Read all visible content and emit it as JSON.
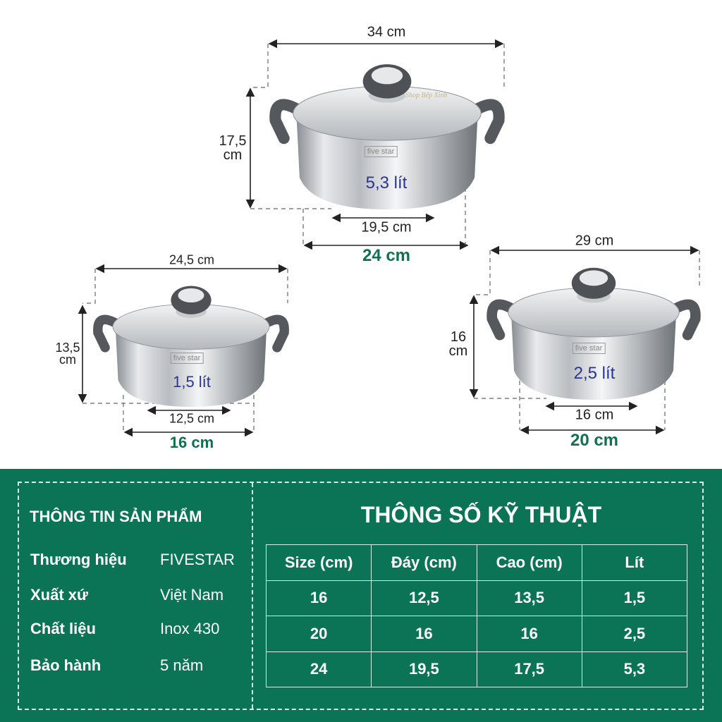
{
  "pots": [
    {
      "name": "large",
      "width": "34 cm",
      "height": "17,5 cm",
      "height_l1": "17,5",
      "height_l2": "cm",
      "bottom": "19,5 cm",
      "base": "24 cm",
      "volume": "5,3 lít"
    },
    {
      "name": "small",
      "width": "24,5 cm",
      "height_l1": "13,5",
      "height_l2": "cm",
      "bottom": "12,5 cm",
      "base": "16 cm",
      "volume": "1,5 lít"
    },
    {
      "name": "medium",
      "width": "29 cm",
      "height_l1": "16",
      "height_l2": "cm",
      "bottom": "16 cm",
      "base": "20 cm",
      "volume": "2,5 lít"
    }
  ],
  "brand_logo": "five star",
  "watermark": "Shop Bếp Xinh",
  "colors": {
    "panel": "#0b7457",
    "base_label": "#0f7152",
    "volume_label": "#2a3591"
  },
  "info": {
    "title": "THÔNG TIN SẢN PHẨM",
    "rows": [
      {
        "label": "Thương hiệu",
        "value": "FIVESTAR"
      },
      {
        "label": "Xuất xứ",
        "value": "Việt Nam"
      },
      {
        "label": "Chất liệu",
        "value": "Inox 430"
      },
      {
        "label": "Bảo hành",
        "value": "5 năm"
      }
    ]
  },
  "specs": {
    "title": "THÔNG SỐ KỸ THUẬT",
    "headers": [
      "Size (cm)",
      "Đáy (cm)",
      "Cao (cm)",
      "Lít"
    ],
    "rows": [
      [
        "16",
        "12,5",
        "13,5",
        "1,5"
      ],
      [
        "20",
        "16",
        "16",
        "2,5"
      ],
      [
        "24",
        "19,5",
        "17,5",
        "5,3"
      ]
    ]
  }
}
